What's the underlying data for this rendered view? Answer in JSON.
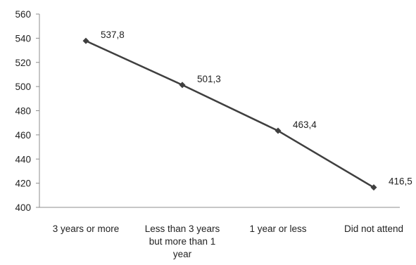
{
  "chart_data": {
    "type": "line",
    "title": "",
    "xlabel": "",
    "ylabel": "",
    "ylim": [
      400,
      560
    ],
    "ytick_step": 20,
    "grid": false,
    "legend": "none",
    "categories": [
      [
        "3 years or more"
      ],
      [
        "Less than 3 years",
        "but more than 1",
        "year"
      ],
      [
        "1 year or less"
      ],
      [
        "Did not attend"
      ]
    ],
    "y_tick_labels": [
      "400",
      "420",
      "440",
      "460",
      "480",
      "500",
      "520",
      "540",
      "560"
    ],
    "series": [
      {
        "values": [
          537.8,
          501.3,
          463.4,
          416.5
        ],
        "data_labels": [
          "537,8",
          "501,3",
          "463,4",
          "416,5"
        ],
        "color": "#3f3f3f",
        "marker": "diamond"
      }
    ],
    "axis_color": "#8c8c8c"
  }
}
